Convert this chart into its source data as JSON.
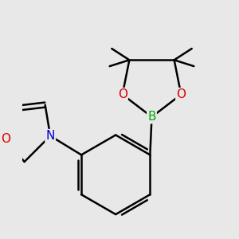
{
  "background_color": "#e8e8e8",
  "atom_colors": {
    "C": "#000000",
    "B": "#00aa00",
    "N": "#0000cc",
    "O": "#dd0000"
  },
  "bond_color": "#000000",
  "bond_width": 1.8,
  "font_size_atom": 11
}
